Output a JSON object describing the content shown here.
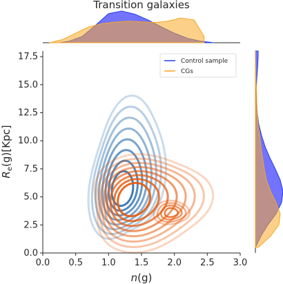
{
  "chart_data": {
    "type": "contour",
    "title": "Transition galaxies",
    "xlabel_main": "n",
    "xlabel_arg": "(g)",
    "ylabel_main": "R",
    "ylabel_sub": "e",
    "ylabel_arg": "(g)[Kpc]",
    "xlim": [
      0.0,
      3.0
    ],
    "ylim": [
      0.0,
      18.0
    ],
    "xticks": [
      "0.0",
      "0.5",
      "1.0",
      "1.5",
      "2.0",
      "2.5",
      "3.0"
    ],
    "yticks": [
      "0.0",
      "2.5",
      "5.0",
      "7.5",
      "10.0",
      "12.5",
      "15.0",
      "17.5"
    ],
    "legend_position": "top-right",
    "series": [
      {
        "name": "Control sample",
        "color": "#1f3fe0",
        "contour_color": "#2a6fb0",
        "density_center": [
          1.2,
          5.5
        ],
        "x_marginal": {
          "x": [
            0.25,
            0.4,
            0.6,
            0.8,
            1.0,
            1.2,
            1.4,
            1.6,
            1.8,
            2.0,
            2.2,
            2.4,
            2.6
          ],
          "density": [
            0.0,
            0.05,
            0.2,
            0.55,
            0.92,
            1.0,
            0.9,
            0.72,
            0.5,
            0.3,
            0.14,
            0.05,
            0.0
          ]
        },
        "y_marginal": {
          "y": [
            0.5,
            1.5,
            2.5,
            3.5,
            4.5,
            5.5,
            6.5,
            7.5,
            8.5,
            9.5,
            10.5,
            11.5,
            12.5,
            13.5,
            14.5,
            15.5,
            16.5,
            17.5,
            18.0
          ],
          "density": [
            0.0,
            0.2,
            0.45,
            0.75,
            0.95,
            1.0,
            0.9,
            0.72,
            0.52,
            0.35,
            0.22,
            0.12,
            0.07,
            0.04,
            0.03,
            0.05,
            0.08,
            0.1,
            0.1
          ]
        }
      },
      {
        "name": "CGs",
        "color": "#f5a623",
        "contour_color": "#e85a0c",
        "density_center": [
          1.35,
          4.8
        ],
        "x_marginal": {
          "x": [
            0.1,
            0.3,
            0.5,
            0.7,
            0.9,
            1.1,
            1.3,
            1.5,
            1.7,
            1.9,
            2.1,
            2.3,
            2.45
          ],
          "density": [
            0.0,
            0.1,
            0.3,
            0.5,
            0.6,
            0.65,
            0.68,
            0.66,
            0.64,
            0.68,
            0.78,
            0.72,
            0.2
          ]
        },
        "y_marginal": {
          "y": [
            0.5,
            1.5,
            2.5,
            3.5,
            4.5,
            5.5,
            6.5,
            7.5,
            8.5,
            9.5,
            10.5,
            11.5,
            12.5,
            13.5,
            14.5,
            15.5,
            16.5,
            17.5,
            18.0
          ],
          "density": [
            0.1,
            0.55,
            0.85,
            0.9,
            0.75,
            0.55,
            0.4,
            0.32,
            0.26,
            0.2,
            0.15,
            0.1,
            0.07,
            0.05,
            0.04,
            0.02,
            0.01,
            0.0,
            0.0
          ]
        }
      }
    ],
    "contour_levels": 8,
    "grid": false
  }
}
